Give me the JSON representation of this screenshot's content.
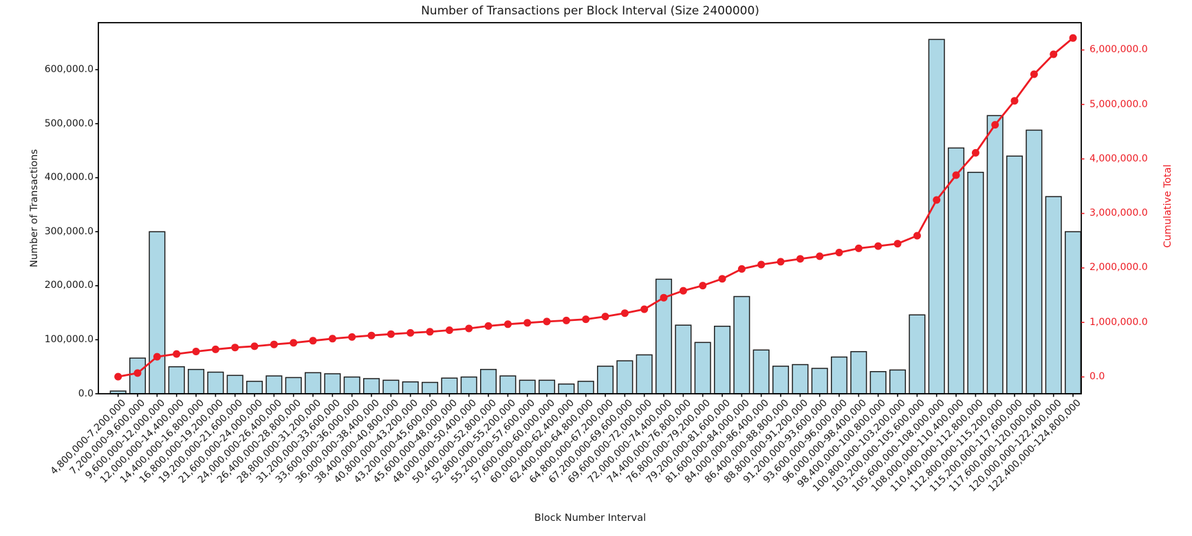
{
  "figure": {
    "title": "Number of Transactions per Block Interval (Size 2400000)",
    "xlabel": "Block Number Interval",
    "ylabel_left": "Number of Transactions",
    "ylabel_right": "Cumulative Total"
  },
  "axes": {
    "left_tick_labels": [
      "0.0",
      "100,000.0",
      "200,000.0",
      "300,000.0",
      "400,000.0",
      "500,000.0",
      "600,000.0"
    ],
    "right_tick_labels": [
      "0.0",
      "1,000,000.0",
      "2,000,000.0",
      "3,000,000.0",
      "4,000,000.0",
      "5,000,000.0",
      "6,000,000.0"
    ]
  },
  "colors": {
    "bar_fill": "#add8e6",
    "bar_edge": "#1f1f1f",
    "red": "#ed1c24",
    "axis": "#000000",
    "text": "#1a1a1a"
  },
  "chart_data": {
    "type": "bar",
    "title": "Number of Transactions per Block Interval (Size 2400000)",
    "xlabel": "Block Number Interval",
    "ylabel_left": "Number of Transactions",
    "ylabel_right": "Cumulative Total",
    "grid": false,
    "legend": "none",
    "ylim_left": [
      0,
      687000
    ],
    "ylim_right": [
      -315000,
      6486000
    ],
    "left_ticks": [
      0,
      100000,
      200000,
      300000,
      400000,
      500000,
      600000
    ],
    "right_ticks": [
      0,
      1000000,
      2000000,
      3000000,
      4000000,
      5000000,
      6000000
    ],
    "categories": [
      "4,800,000-7,200,000",
      "7,200,000-9,600,000",
      "9,600,000-12,000,000",
      "12,000,000-14,400,000",
      "14,400,000-16,800,000",
      "16,800,000-19,200,000",
      "19,200,000-21,600,000",
      "21,600,000-24,000,000",
      "24,000,000-26,400,000",
      "26,400,000-28,800,000",
      "28,800,000-31,200,000",
      "31,200,000-33,600,000",
      "33,600,000-36,000,000",
      "36,000,000-38,400,000",
      "38,400,000-40,800,000",
      "40,800,000-43,200,000",
      "43,200,000-45,600,000",
      "45,600,000-48,000,000",
      "48,000,000-50,400,000",
      "50,400,000-52,800,000",
      "52,800,000-55,200,000",
      "55,200,000-57,600,000",
      "57,600,000-60,000,000",
      "60,000,000-62,400,000",
      "62,400,000-64,800,000",
      "64,800,000-67,200,000",
      "67,200,000-69,600,000",
      "69,600,000-72,000,000",
      "72,000,000-74,400,000",
      "74,400,000-76,800,000",
      "76,800,000-79,200,000",
      "79,200,000-81,600,000",
      "81,600,000-84,000,000",
      "84,000,000-86,400,000",
      "86,400,000-88,800,000",
      "88,800,000-91,200,000",
      "91,200,000-93,600,000",
      "93,600,000-96,000,000",
      "96,000,000-98,400,000",
      "98,400,000-100,800,000",
      "100,800,000-103,200,000",
      "103,200,000-105,600,000",
      "105,600,000-108,000,000",
      "108,000,000-110,400,000",
      "110,400,000-112,800,000",
      "112,800,000-115,200,000",
      "115,200,000-117,600,000",
      "117,600,000-120,000,000",
      "120,000,000-122,400,000",
      "122,400,000-124,800,000"
    ],
    "series": [
      {
        "name": "Number of Transactions",
        "type": "bar",
        "axis": "left",
        "values": [
          5000,
          66000,
          300000,
          50000,
          45000,
          40000,
          34000,
          23000,
          33000,
          30000,
          39000,
          37000,
          31000,
          28000,
          25000,
          22000,
          21000,
          29000,
          31000,
          45000,
          33000,
          25000,
          25000,
          18000,
          23000,
          51000,
          61000,
          72000,
          212000,
          127000,
          95000,
          125000,
          180000,
          81000,
          51000,
          54000,
          47000,
          68000,
          78000,
          41000,
          44000,
          146000,
          656000,
          455000,
          410000,
          515000,
          440000,
          488000,
          365000,
          300000
        ]
      },
      {
        "name": "Cumulative Total",
        "type": "line",
        "axis": "right",
        "marker": "o",
        "values": [
          5000,
          71000,
          371000,
          421000,
          466000,
          506000,
          540000,
          563000,
          596000,
          626000,
          665000,
          702000,
          733000,
          761000,
          786000,
          808000,
          829000,
          858000,
          889000,
          934000,
          967000,
          992000,
          1017000,
          1035000,
          1058000,
          1109000,
          1170000,
          1242000,
          1454000,
          1581000,
          1676000,
          1801000,
          1981000,
          2062000,
          2113000,
          2167000,
          2214000,
          2282000,
          2360000,
          2401000,
          2445000,
          2591000,
          3247000,
          3702000,
          4112000,
          4627000,
          5067000,
          5555000,
          5920000,
          6220000
        ]
      }
    ]
  }
}
